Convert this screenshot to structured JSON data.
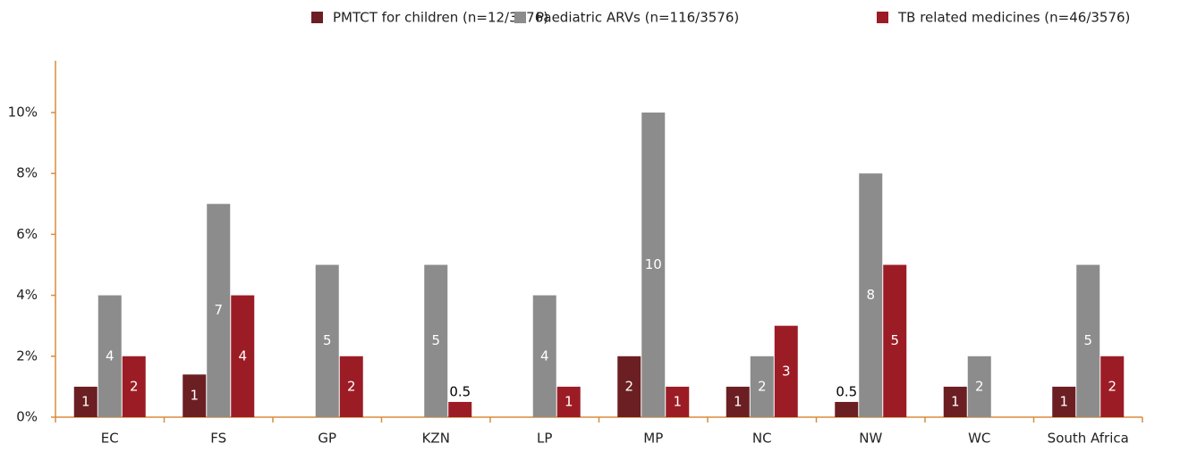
{
  "chart_data": {
    "type": "bar",
    "categories": [
      "EC",
      "FS",
      "GP",
      "KZN",
      "LP",
      "MP",
      "NC",
      "NW",
      "WC",
      "South Africa"
    ],
    "series": [
      {
        "name": "PMTCT for children (n=12/3576)",
        "color": "#6b1f22",
        "values": [
          1,
          1.4,
          null,
          null,
          null,
          2,
          1,
          0.5,
          1,
          1
        ],
        "value_labels": [
          "1",
          "1",
          null,
          null,
          null,
          "2",
          "1",
          "0.5",
          "1",
          "1"
        ]
      },
      {
        "name": "Paediatric ARVs (n=116/3576)",
        "color": "#8c8c8c",
        "values": [
          4,
          7,
          5,
          5,
          4,
          10,
          2,
          8,
          2,
          5
        ],
        "value_labels": [
          "4",
          "7",
          "5",
          "5",
          "4",
          "10",
          "2",
          "8",
          "2",
          "5"
        ]
      },
      {
        "name": "TB related medicines (n=46/3576)",
        "color": "#9c1c25",
        "values": [
          2,
          4,
          2,
          0.5,
          1,
          1,
          3,
          5,
          null,
          2
        ],
        "value_labels": [
          "2",
          "4",
          "2",
          "0.5",
          "1",
          "1",
          "3",
          "5",
          null,
          "2"
        ]
      }
    ],
    "ylim": [
      0,
      11.7
    ],
    "yticks": [
      {
        "value": 0,
        "label": "0%"
      },
      {
        "value": 2,
        "label": "2%"
      },
      {
        "value": 4,
        "label": "4%"
      },
      {
        "value": 6,
        "label": "6%"
      },
      {
        "value": 8,
        "label": "8%"
      },
      {
        "value": 10,
        "label": "10%"
      }
    ],
    "legend": "top-right"
  }
}
